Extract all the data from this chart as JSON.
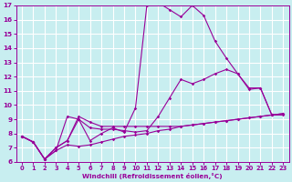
{
  "background_color": "#c8eef0",
  "grid_color": "#ffffff",
  "line_color": "#990099",
  "xlabel": "Windchill (Refroidissement éolien,°C)",
  "xlim": [
    -0.5,
    23.5
  ],
  "ylim": [
    6,
    17
  ],
  "yticks": [
    6,
    7,
    8,
    9,
    10,
    11,
    12,
    13,
    14,
    15,
    16,
    17
  ],
  "xticks": [
    0,
    1,
    2,
    3,
    4,
    5,
    6,
    7,
    8,
    9,
    10,
    11,
    12,
    13,
    14,
    15,
    16,
    17,
    18,
    19,
    20,
    21,
    22,
    23
  ],
  "series": [
    {
      "x": [
        0,
        1,
        2,
        3,
        4,
        5,
        6,
        7,
        8,
        9,
        10,
        11,
        12,
        13,
        14,
        15,
        16,
        17,
        18,
        19,
        20,
        21,
        22,
        23
      ],
      "y": [
        7.8,
        7.4,
        6.2,
        6.8,
        7.2,
        7.1,
        7.2,
        7.4,
        7.6,
        7.8,
        7.9,
        8.0,
        8.2,
        8.3,
        8.5,
        8.6,
        8.7,
        8.8,
        8.9,
        9.0,
        9.1,
        9.2,
        9.3,
        9.4
      ]
    },
    {
      "x": [
        0,
        1,
        2,
        3,
        4,
        5,
        6,
        7,
        8,
        9,
        10,
        11,
        12,
        13,
        14,
        15,
        16,
        17,
        18,
        19,
        20,
        21,
        22
      ],
      "y": [
        7.8,
        7.4,
        6.2,
        7.0,
        7.5,
        9.0,
        7.5,
        8.0,
        8.4,
        8.1,
        9.8,
        17.0,
        17.2,
        16.7,
        16.2,
        17.0,
        16.3,
        14.5,
        13.3,
        12.2,
        11.1,
        11.2,
        9.3
      ]
    },
    {
      "x": [
        0,
        1,
        2,
        3,
        4,
        5,
        6,
        7,
        8,
        9,
        10,
        11,
        12,
        13,
        14,
        15,
        16,
        17,
        18,
        19,
        20,
        21,
        22,
        23
      ],
      "y": [
        7.8,
        7.4,
        6.2,
        6.8,
        9.2,
        9.0,
        8.4,
        8.3,
        8.3,
        8.2,
        8.1,
        8.2,
        9.2,
        10.5,
        11.8,
        11.5,
        11.8,
        12.2,
        12.5,
        12.2,
        11.2,
        11.2,
        9.3,
        9.3
      ]
    },
    {
      "x": [
        0,
        1,
        2,
        3,
        4,
        5,
        6,
        7,
        8,
        9,
        10,
        11,
        12,
        13,
        14,
        15,
        16,
        17,
        18,
        19,
        20,
        21,
        22,
        23
      ],
      "y": [
        7.8,
        7.4,
        6.2,
        7.0,
        7.5,
        9.2,
        8.8,
        8.5,
        8.5,
        8.5,
        8.5,
        8.5,
        8.5,
        8.5,
        8.5,
        8.6,
        8.7,
        8.8,
        8.9,
        9.0,
        9.1,
        9.2,
        9.3,
        9.4
      ]
    }
  ]
}
